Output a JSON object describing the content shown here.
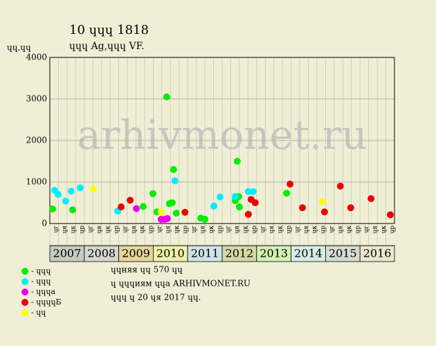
{
  "chart_data": {
    "type": "scatter",
    "title": "10 ɥɥɥ 1818",
    "subtitle": "ɥɥɥ Ag,ɥɥɥ VF.",
    "y_label": "ɥɥ,ɥɥ",
    "watermark": "arhivmonet.ru",
    "xlim": [
      2007,
      2017
    ],
    "ylim": [
      0,
      4000
    ],
    "yticks": [
      0,
      1000,
      2000,
      3000,
      4000
    ],
    "grid": true,
    "quarter_labels": [
      "ɥг",
      "ɥя",
      "ɥк",
      "ɥр"
    ],
    "years": [
      {
        "label": "2007",
        "color": "#c6ccc0"
      },
      {
        "label": "2008",
        "color": "#d6d6cf"
      },
      {
        "label": "2009",
        "color": "#e6d49a"
      },
      {
        "label": "2010",
        "color": "#eef0a8"
      },
      {
        "label": "2011",
        "color": "#cfe3e6"
      },
      {
        "label": "2012",
        "color": "#d6d6a6"
      },
      {
        "label": "2013",
        "color": "#d2f0b0"
      },
      {
        "label": "2014",
        "color": "#d6ece6"
      },
      {
        "label": "2015",
        "color": "#d4dcd2"
      },
      {
        "label": "2016",
        "color": "#ece6cc"
      }
    ],
    "series": [
      {
        "name": "- ɥɥɥ",
        "color": "#00ee00",
        "x": [
          2007.08,
          2007.66,
          2009.71,
          2009.99,
          2010.11,
          2010.39,
          2010.47,
          2010.55,
          2010.59,
          2010.67,
          2011.38,
          2011.5,
          2012.38,
          2012.44,
          2012.5,
          2012.48,
          2013.87
        ],
        "values": [
          350,
          330,
          410,
          720,
          280,
          3050,
          480,
          500,
          1300,
          250,
          130,
          100,
          550,
          1500,
          400,
          650,
          730
        ]
      },
      {
        "name": "- ɥɥɥ",
        "color": "#00eeff",
        "x": [
          2007.14,
          2007.24,
          2007.46,
          2007.62,
          2007.88,
          2008.97,
          2010.63,
          2011.76,
          2011.94,
          2012.38,
          2012.76,
          2012.9
        ],
        "values": [
          800,
          700,
          540,
          780,
          860,
          300,
          1030,
          420,
          640,
          650,
          770,
          770
        ]
      },
      {
        "name": "- ɥɥɥа",
        "color": "#ee00ee",
        "x": [
          2009.51,
          2010.23,
          2010.33,
          2010.41
        ],
        "values": [
          360,
          100,
          100,
          120
        ]
      },
      {
        "name": "- ɥɥɥɥБ",
        "color": "#ee0000",
        "x": [
          2009.07,
          2009.33,
          2010.92,
          2012.76,
          2012.84,
          2012.96,
          2013.97,
          2014.33,
          2014.97,
          2015.43,
          2015.73,
          2016.32,
          2016.88
        ],
        "values": [
          400,
          560,
          270,
          220,
          580,
          500,
          950,
          380,
          280,
          900,
          380,
          600,
          210
        ]
      },
      {
        "name": "- ɥɥ",
        "color": "#ffff00",
        "x": [
          2008.27,
          2010.23,
          2014.91
        ],
        "values": [
          830,
          280,
          530
        ]
      }
    ],
    "notes": [
      "ɥɥняя ɥɥ 570 ɥɥ",
      "ɥ ɥɥɥиям ɥɥа ARHIVMONET.RU",
      "ɥɥɥ ɥ 20 ɥя 2017 ɥɥ."
    ]
  }
}
